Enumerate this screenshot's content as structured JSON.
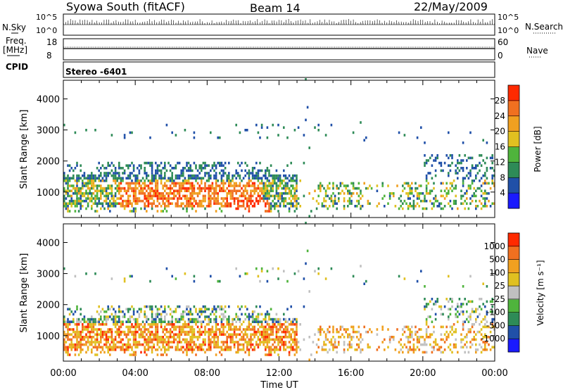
{
  "header": {
    "station": "Syowa South (fitACF)",
    "beam": "Beam 14",
    "date": "22/May/2009"
  },
  "aux": {
    "nsky_label": "N.Sky",
    "nsky_max": "10^5",
    "nsky_min": "10^0",
    "nsearch_label": "N.Search",
    "nsearch_max": "10^5",
    "nsearch_min": "10^0",
    "freq_label": "Freq.",
    "freq_unit": "[MHz]",
    "freq_max": "18",
    "freq_min": "8",
    "nave_label": "Nave",
    "nave_max": "60",
    "nave_min": "0",
    "cpid_label": "CPID",
    "cpid_value": "Stereo -6401"
  },
  "chart_data": [
    {
      "type": "heatmap",
      "title": "",
      "xlabel": "",
      "ylabel": "Slant Range [km]",
      "x_ticks": [
        "00:00",
        "04:00",
        "08:00",
        "12:00",
        "16:00",
        "20:00",
        "00:00"
      ],
      "y_ticks": [
        1000,
        2000,
        3000,
        4000
      ],
      "ylim": [
        180,
        4600
      ],
      "colorbar": {
        "label": "Power [dB]",
        "tick_labels": [
          "4",
          "8",
          "12",
          "16",
          "20",
          "24",
          "28"
        ],
        "colors": [
          "#1a1aff",
          "#2050a8",
          "#2e8b57",
          "#4fb43c",
          "#e0c020",
          "#f0a020",
          "#f07020",
          "#ff2a00"
        ]
      }
    },
    {
      "type": "heatmap",
      "title": "",
      "xlabel": "Time UT",
      "ylabel": "Slant Range [km]",
      "x_ticks": [
        "00:00",
        "04:00",
        "08:00",
        "12:00",
        "16:00",
        "20:00",
        "00:00"
      ],
      "y_ticks": [
        1000,
        2000,
        3000,
        4000
      ],
      "ylim": [
        180,
        4600
      ],
      "colorbar": {
        "label": "Velocity [m s⁻¹]",
        "tick_labels": [
          "1000",
          "500",
          "100",
          "25",
          "-25",
          "-100",
          "-500",
          "-1000"
        ],
        "colors": [
          "#1a1aff",
          "#2050a8",
          "#2e8b57",
          "#4fb43c",
          "#c0c0c0",
          "#e0c020",
          "#f0a020",
          "#f07020",
          "#ff2a00"
        ]
      }
    }
  ]
}
